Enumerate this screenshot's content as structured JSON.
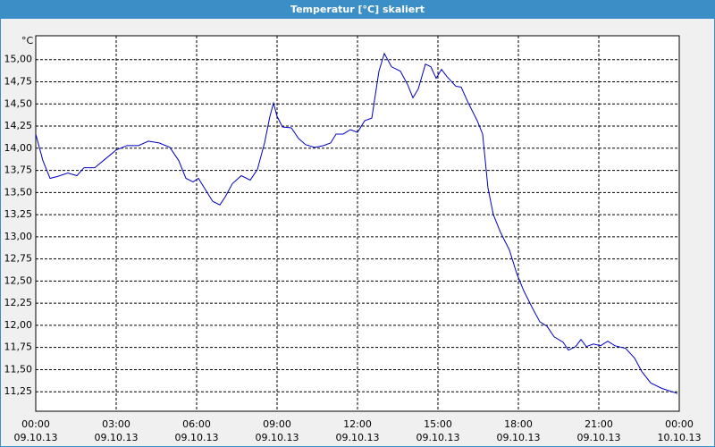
{
  "chart_data": {
    "type": "line",
    "title": "Temperatur [°C] skaliert",
    "y_label": "°C",
    "x": [
      "09.10.13 00:00",
      "09.10.13 00:16",
      "09.10.13 00:32",
      "09.10.13 00:48",
      "09.10.13 01:12",
      "09.10.13 01:32",
      "09.10.13 01:48",
      "09.10.13 02:12",
      "09.10.13 02:36",
      "09.10.13 03:00",
      "09.10.13 03:24",
      "09.10.13 03:50",
      "09.10.13 04:12",
      "09.10.13 04:36",
      "09.10.13 05:00",
      "09.10.13 05:20",
      "09.10.13 05:36",
      "09.10.13 05:52",
      "09.10.13 06:04",
      "09.10.13 06:20",
      "09.10.13 06:36",
      "09.10.13 06:52",
      "09.10.13 07:04",
      "09.10.13 07:20",
      "09.10.13 07:40",
      "09.10.13 08:00",
      "09.10.13 08:16",
      "09.10.13 08:32",
      "09.10.13 08:44",
      "09.10.13 08:52",
      "09.10.13 09:00",
      "09.10.13 09:12",
      "09.10.13 09:32",
      "09.10.13 09:48",
      "09.10.13 10:04",
      "09.10.13 10:24",
      "09.10.13 10:44",
      "09.10.13 11:00",
      "09.10.13 11:12",
      "09.10.13 11:28",
      "09.10.13 11:44",
      "09.10.13 12:00",
      "09.10.13 12:16",
      "09.10.13 12:32",
      "09.10.13 12:48",
      "09.10.13 13:00",
      "09.10.13 13:16",
      "09.10.13 13:36",
      "09.10.13 13:52",
      "09.10.13 14:04",
      "09.10.13 14:16",
      "09.10.13 14:32",
      "09.10.13 14:44",
      "09.10.13 14:56",
      "09.10.13 15:08",
      "09.10.13 15:20",
      "09.10.13 15:40",
      "09.10.13 15:52",
      "09.10.13 16:08",
      "09.10.13 16:28",
      "09.10.13 16:40",
      "09.10.13 16:52",
      "09.10.13 17:04",
      "09.10.13 17:20",
      "09.10.13 17:40",
      "09.10.13 17:56",
      "09.10.13 18:12",
      "09.10.13 18:32",
      "09.10.13 18:48",
      "09.10.13 19:04",
      "09.10.13 19:20",
      "09.10.13 19:40",
      "09.10.13 19:52",
      "09.10.13 20:08",
      "09.10.13 20:20",
      "09.10.13 20:32",
      "09.10.13 20:48",
      "09.10.13 21:04",
      "09.10.13 21:20",
      "09.10.13 21:36",
      "09.10.13 22:00",
      "09.10.13 22:20",
      "09.10.13 22:36",
      "09.10.13 22:56",
      "09.10.13 23:20",
      "09.10.13 23:44",
      "09.10.13 23:56"
    ],
    "series": [
      {
        "name": "Temperatur",
        "color": "#0000c0",
        "values": [
          14.16,
          13.86,
          13.66,
          13.68,
          13.72,
          13.69,
          13.78,
          13.78,
          13.88,
          13.98,
          14.03,
          14.03,
          14.08,
          14.06,
          14.01,
          13.86,
          13.66,
          13.62,
          13.66,
          13.53,
          13.4,
          13.36,
          13.45,
          13.6,
          13.69,
          13.64,
          13.76,
          14.06,
          14.36,
          14.51,
          14.36,
          14.24,
          14.23,
          14.11,
          14.04,
          14.01,
          14.03,
          14.06,
          14.16,
          14.16,
          14.21,
          14.18,
          14.31,
          14.34,
          14.87,
          15.07,
          14.92,
          14.87,
          14.72,
          14.57,
          14.67,
          14.95,
          14.92,
          14.79,
          14.89,
          14.81,
          14.7,
          14.69,
          14.51,
          14.31,
          14.16,
          13.55,
          13.25,
          13.05,
          12.85,
          12.59,
          12.39,
          12.19,
          12.04,
          11.99,
          11.87,
          11.81,
          11.72,
          11.76,
          11.84,
          11.76,
          11.79,
          11.77,
          11.82,
          11.77,
          11.74,
          11.63,
          11.48,
          11.35,
          11.29,
          11.25,
          11.23
        ]
      }
    ],
    "xlim": [
      "09.10.13 00:00",
      "10.10.13 00:00"
    ],
    "xticks": [
      {
        "value": "09.10.13 00:00",
        "label": "00:00\n09.10.13"
      },
      {
        "value": "09.10.13 03:00",
        "label": "03:00\n09.10.13"
      },
      {
        "value": "09.10.13 06:00",
        "label": "06:00\n09.10.13"
      },
      {
        "value": "09.10.13 09:00",
        "label": "09:00\n09.10.13"
      },
      {
        "value": "09.10.13 12:00",
        "label": "12:00\n09.10.13"
      },
      {
        "value": "09.10.13 15:00",
        "label": "15:00\n09.10.13"
      },
      {
        "value": "09.10.13 18:00",
        "label": "18:00\n09.10.13"
      },
      {
        "value": "09.10.13 21:00",
        "label": "21:00\n09.10.13"
      },
      {
        "value": "10.10.13 00:00",
        "label": "00:00\n10.10.13"
      }
    ],
    "ylim": [
      11.03,
      15.27
    ],
    "yticks": [
      {
        "value": 11.25,
        "label": "11,25"
      },
      {
        "value": 11.5,
        "label": "11,50"
      },
      {
        "value": 11.75,
        "label": "11,75"
      },
      {
        "value": 12,
        "label": "12,00"
      },
      {
        "value": 12.25,
        "label": "12,25"
      },
      {
        "value": 12.5,
        "label": "12,50"
      },
      {
        "value": 12.75,
        "label": "12,75"
      },
      {
        "value": 13,
        "label": "13,00"
      },
      {
        "value": 13.25,
        "label": "13,25"
      },
      {
        "value": 13.5,
        "label": "13,50"
      },
      {
        "value": 13.75,
        "label": "13,75"
      },
      {
        "value": 14,
        "label": "14,00"
      },
      {
        "value": 14.25,
        "label": "14,25"
      },
      {
        "value": 14.5,
        "label": "14,50"
      },
      {
        "value": 14.75,
        "label": "14,75"
      },
      {
        "value": 15,
        "label": "15,00"
      }
    ],
    "grid": true
  }
}
